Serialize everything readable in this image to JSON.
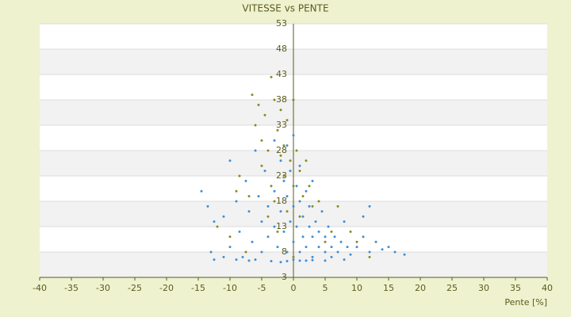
{
  "chart_data": {
    "type": "scatter",
    "title": "VITESSE vs PENTE",
    "x_label": "Pente [%]",
    "xlim": [
      -40,
      40
    ],
    "xticks": [
      -40,
      -35,
      -30,
      -25,
      -20,
      -15,
      -10,
      -5,
      0,
      5,
      10,
      15,
      20,
      25,
      30,
      35,
      40
    ],
    "ylim": [
      3,
      53
    ],
    "yticks": [
      3,
      8,
      13,
      18,
      23,
      28,
      33,
      38,
      43,
      48,
      53
    ],
    "grid": true,
    "series": [
      {
        "color": "#3d8fd6",
        "x": [
          -14.5,
          -13.5,
          -12.5,
          -12.5,
          -11,
          -10,
          -10,
          -9,
          -8.5,
          -8,
          -7.5,
          -7,
          -6.5,
          -6,
          -6,
          -5.5,
          -5,
          -5,
          -4.5,
          -4,
          -4,
          -3.5,
          -3,
          -3,
          -3,
          -2.5,
          -2,
          -2,
          -2,
          -1.5,
          -1.5,
          -1,
          -1,
          -1,
          -0.5,
          -0.5,
          0,
          0,
          0,
          0,
          0.5,
          0.5,
          1,
          1,
          1,
          1.5,
          1.5,
          2,
          2,
          2,
          2.5,
          2.5,
          3,
          3,
          3,
          3.5,
          4,
          4,
          4.5,
          5,
          5,
          5.5,
          6,
          6,
          6.5,
          7,
          7.5,
          8,
          8,
          8.5,
          9,
          10,
          11,
          11,
          12,
          12,
          13,
          14,
          15,
          16,
          17.5,
          -13,
          -11,
          -9,
          -7,
          -1,
          1,
          3,
          5
        ],
        "values": [
          20,
          17,
          14,
          6.5,
          15,
          26,
          9,
          18,
          12,
          7,
          22,
          16,
          10,
          28,
          6.5,
          19,
          14,
          8,
          24,
          11,
          17,
          6.2,
          30,
          20,
          13,
          9,
          26,
          16,
          6,
          22,
          12,
          19,
          8,
          29,
          14,
          24,
          10,
          17,
          6.5,
          31,
          21,
          13,
          8,
          18,
          25,
          11,
          15,
          6.3,
          20,
          9,
          13,
          17,
          11,
          7,
          22,
          14,
          9,
          12,
          16,
          8,
          11,
          13,
          9,
          7,
          11,
          8,
          10,
          14,
          6.5,
          9,
          7.5,
          9,
          15,
          11,
          17,
          8,
          10,
          8.5,
          9,
          8,
          7.5,
          8,
          7,
          6.5,
          6.3,
          6.2,
          6.3,
          6.4,
          6.3
        ]
      },
      {
        "color": "#8a8a1c",
        "x": [
          -8.5,
          -7,
          -6.5,
          -6,
          -5.5,
          -5,
          -5,
          -4.5,
          -4,
          -4,
          -3.5,
          -3.5,
          -3,
          -3,
          -2.5,
          -2.5,
          -2,
          -2,
          -1.5,
          -1.5,
          -1,
          -1,
          -0.5,
          0,
          0,
          0.5,
          1,
          1,
          1.5,
          2,
          2.5,
          3,
          4,
          5,
          6,
          7,
          9,
          10,
          12,
          -10,
          -12,
          -7.5,
          -9,
          0
        ],
        "values": [
          23,
          19,
          39,
          33,
          37,
          30,
          25,
          35,
          15,
          28,
          42.5,
          21,
          38,
          18,
          32,
          12,
          27,
          36,
          23,
          29,
          34,
          16,
          26,
          38,
          21,
          28,
          24,
          15,
          19,
          26,
          21,
          17,
          18,
          10,
          12,
          17,
          12,
          10,
          7,
          11,
          13,
          8,
          20,
          7
        ]
      }
    ]
  }
}
